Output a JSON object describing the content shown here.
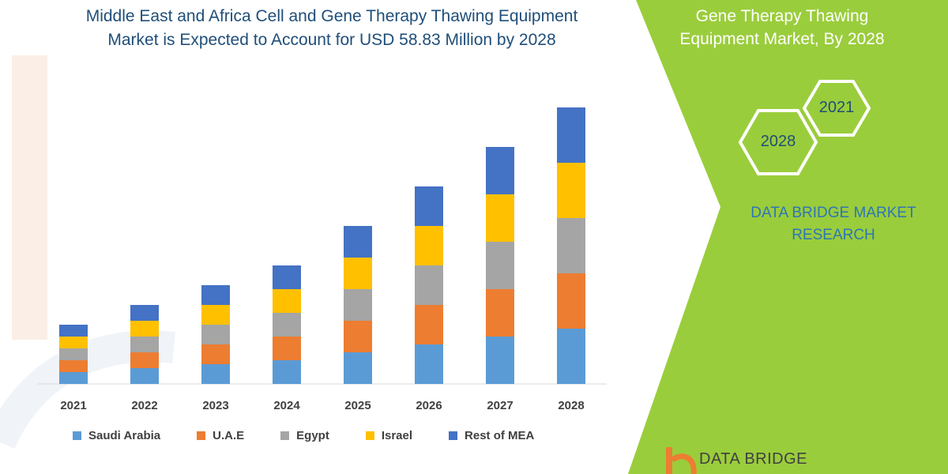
{
  "header": {
    "title_line1": "Middle East and Africa Cell and Gene Therapy Thawing Equipment",
    "title_line2": "Market is Expected to Account for USD 58.83 Million by 2028"
  },
  "side_panel": {
    "title_line1": "Gene Therapy Thawing",
    "title_line2": "Equipment Market, By 2028",
    "hex_top_year": "2021",
    "hex_bottom_year": "2028",
    "brand_line1": "DATA BRIDGE MARKET",
    "brand_line2": "RESEARCH",
    "panel_color": "#9acd3c"
  },
  "footer": {
    "logo_text": "DATA BRIDGE"
  },
  "chart_data": {
    "type": "bar",
    "stacked": true,
    "categories": [
      "2021",
      "2022",
      "2023",
      "2024",
      "2025",
      "2026",
      "2027",
      "2028"
    ],
    "series": [
      {
        "name": "Saudi Arabia",
        "color": "#5b9bd5",
        "values": [
          15,
          20,
          25,
          30,
          40,
          50,
          60,
          70
        ]
      },
      {
        "name": "U.A.E",
        "color": "#ed7d31",
        "values": [
          15,
          20,
          25,
          30,
          40,
          50,
          60,
          70
        ]
      },
      {
        "name": "Egypt",
        "color": "#a5a5a5",
        "values": [
          15,
          20,
          25,
          30,
          40,
          50,
          60,
          70
        ]
      },
      {
        "name": "Israel",
        "color": "#ffc000",
        "values": [
          15,
          20,
          25,
          30,
          40,
          50,
          60,
          70
        ]
      },
      {
        "name": "Rest of MEA",
        "color": "#4472c4",
        "values": [
          15,
          20,
          25,
          30,
          40,
          50,
          60,
          70
        ]
      }
    ],
    "ylim": [
      0,
      350
    ],
    "grid": false,
    "legend_position": "bottom"
  }
}
